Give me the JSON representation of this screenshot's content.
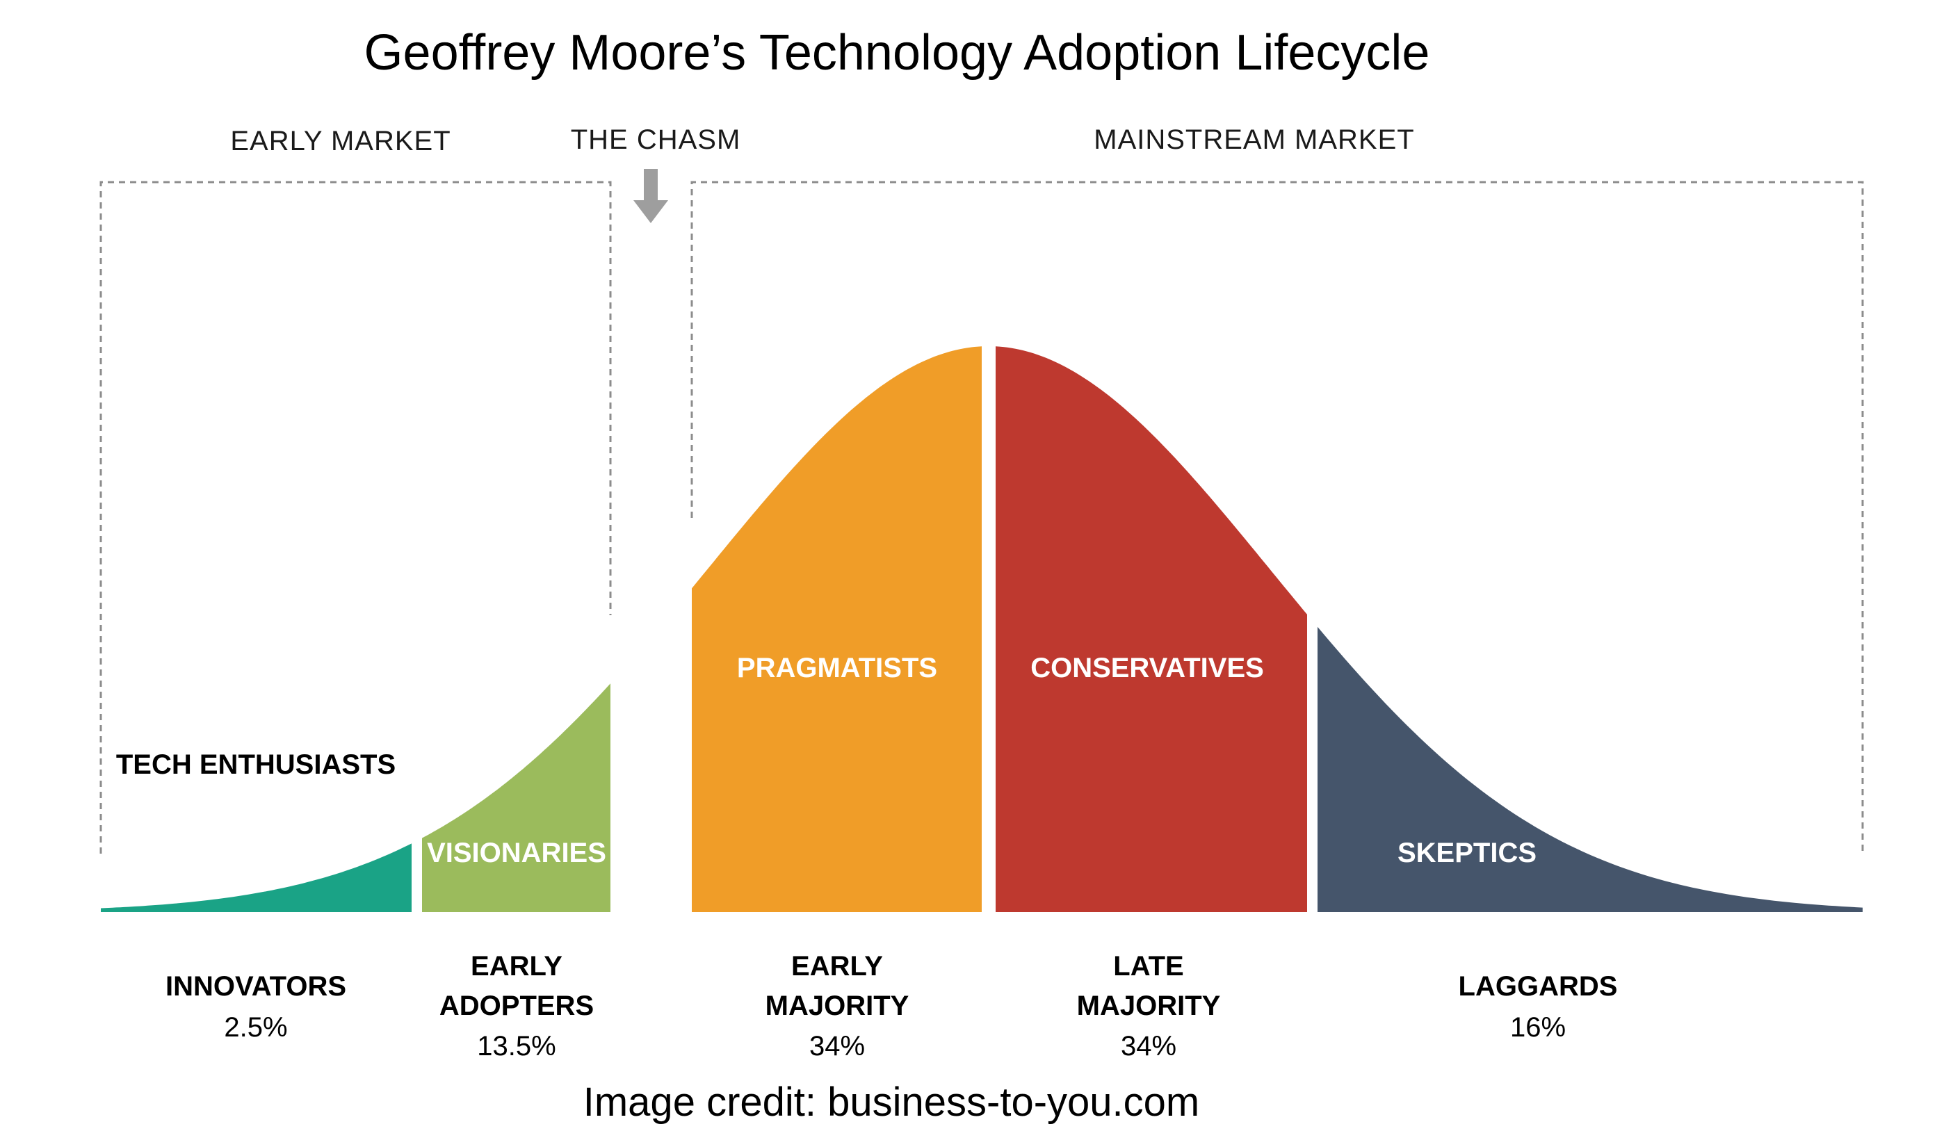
{
  "title": "Geoffrey Moore’s Technology Adoption Lifecycle",
  "regions": {
    "early_market": "EARLY MARKET",
    "chasm": "THE CHASM",
    "mainstream_market": "MAINSTREAM MARKET"
  },
  "segments": [
    {
      "label": "TECH ENTHUSIASTS",
      "group": [
        "INNOVATORS"
      ],
      "percent": "2.5%",
      "color": "#1aa386"
    },
    {
      "label": "VISIONARIES",
      "group": [
        "EARLY",
        "ADOPTERS"
      ],
      "percent": "13.5%",
      "color": "#9bbb5c"
    },
    {
      "label": "PRAGMATISTS",
      "group": [
        "EARLY",
        "MAJORITY"
      ],
      "percent": "34%",
      "color": "#f09d28"
    },
    {
      "label": "CONSERVATIVES",
      "group": [
        "LATE",
        "MAJORITY"
      ],
      "percent": "34%",
      "color": "#be392f"
    },
    {
      "label": "SKEPTICS",
      "group": [
        "LAGGARDS"
      ],
      "percent": "16%",
      "color": "#45556b"
    }
  ],
  "colors": {
    "bracket": "#8c8c8c",
    "arrow": "#9e9e9e"
  },
  "credit": "Image credit: business-to-you.com"
}
